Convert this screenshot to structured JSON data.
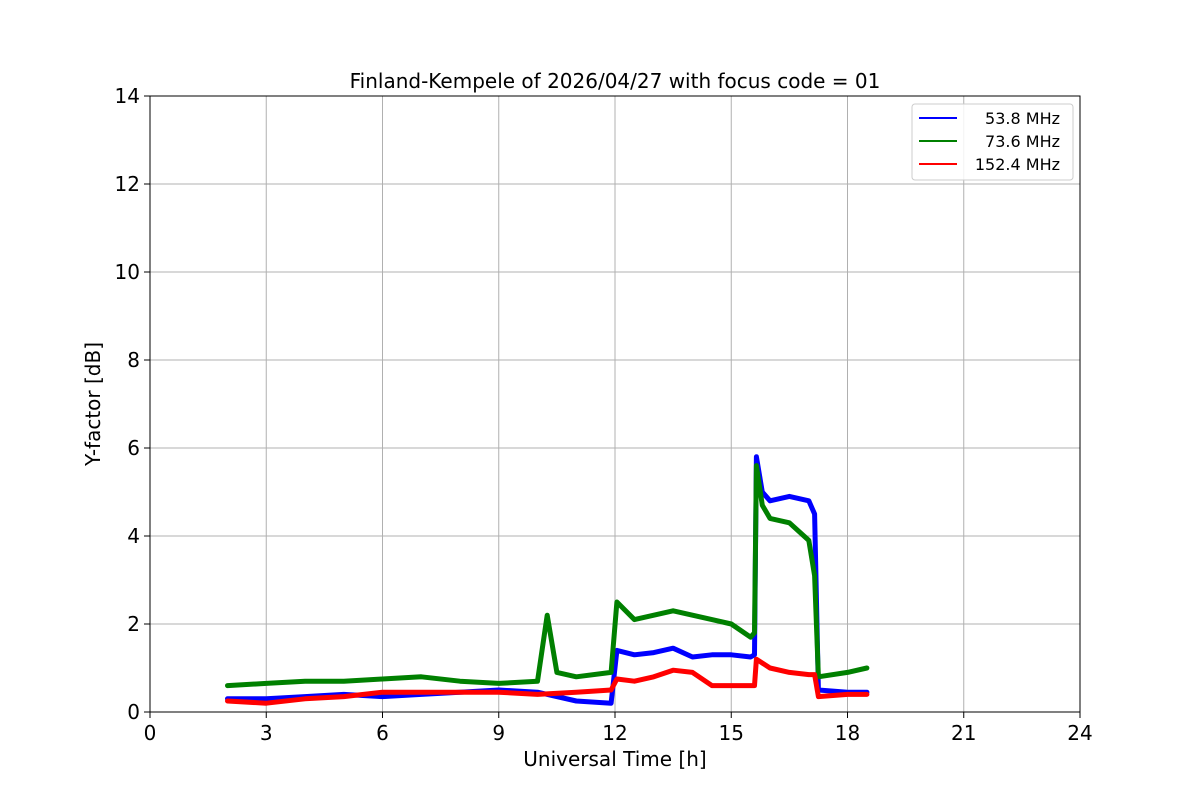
{
  "chart_data": {
    "type": "line",
    "title": "Finland-Kempele of 2026/04/27 with focus code = 01",
    "xlabel": "Universal Time [h]",
    "ylabel": "Y-factor [dB]",
    "xlim": [
      0,
      24
    ],
    "ylim": [
      0,
      14
    ],
    "xticks": [
      0,
      3,
      6,
      9,
      12,
      15,
      18,
      21,
      24
    ],
    "yticks": [
      0,
      2,
      4,
      6,
      8,
      10,
      12,
      14
    ],
    "grid": true,
    "legend_position": "top-right",
    "series": [
      {
        "name": "53.8 MHz",
        "color": "#0000ff",
        "x": [
          2.0,
          3.0,
          4.0,
          5.0,
          6.0,
          7.0,
          8.0,
          9.0,
          10.0,
          11.0,
          11.9,
          12.05,
          12.5,
          13.0,
          13.5,
          14.0,
          14.5,
          15.0,
          15.5,
          15.6,
          15.65,
          15.8,
          16.0,
          16.5,
          17.0,
          17.15,
          17.25,
          18.0,
          18.5
        ],
        "y": [
          0.3,
          0.3,
          0.35,
          0.4,
          0.35,
          0.4,
          0.45,
          0.5,
          0.45,
          0.25,
          0.2,
          1.4,
          1.3,
          1.35,
          1.45,
          1.25,
          1.3,
          1.3,
          1.25,
          1.3,
          5.8,
          5.0,
          4.8,
          4.9,
          4.8,
          4.5,
          0.5,
          0.45,
          0.45
        ]
      },
      {
        "name": "73.6 MHz",
        "color": "#008000",
        "x": [
          2.0,
          3.0,
          4.0,
          5.0,
          6.0,
          7.0,
          8.0,
          9.0,
          10.0,
          10.25,
          10.5,
          11.0,
          11.9,
          12.05,
          12.5,
          13.0,
          13.5,
          14.0,
          14.5,
          15.0,
          15.5,
          15.6,
          15.65,
          15.8,
          16.0,
          16.5,
          17.0,
          17.15,
          17.25,
          18.0,
          18.5
        ],
        "y": [
          0.6,
          0.65,
          0.7,
          0.7,
          0.75,
          0.8,
          0.7,
          0.65,
          0.7,
          2.2,
          0.9,
          0.8,
          0.9,
          2.5,
          2.1,
          2.2,
          2.3,
          2.2,
          2.1,
          2.0,
          1.7,
          1.8,
          5.6,
          4.7,
          4.4,
          4.3,
          3.9,
          3.1,
          0.8,
          0.9,
          1.0
        ]
      },
      {
        "name": "152.4 MHz",
        "color": "#ff0000",
        "x": [
          2.0,
          3.0,
          4.0,
          5.0,
          6.0,
          7.0,
          8.0,
          9.0,
          10.0,
          11.0,
          11.9,
          12.05,
          12.5,
          13.0,
          13.5,
          14.0,
          14.5,
          15.0,
          15.5,
          15.6,
          15.65,
          16.0,
          16.5,
          17.0,
          17.15,
          17.25,
          18.0,
          18.5
        ],
        "y": [
          0.25,
          0.2,
          0.3,
          0.35,
          0.45,
          0.45,
          0.45,
          0.45,
          0.4,
          0.45,
          0.5,
          0.75,
          0.7,
          0.8,
          0.95,
          0.9,
          0.6,
          0.6,
          0.6,
          0.6,
          1.2,
          1.0,
          0.9,
          0.85,
          0.85,
          0.35,
          0.4,
          0.4
        ]
      }
    ]
  }
}
